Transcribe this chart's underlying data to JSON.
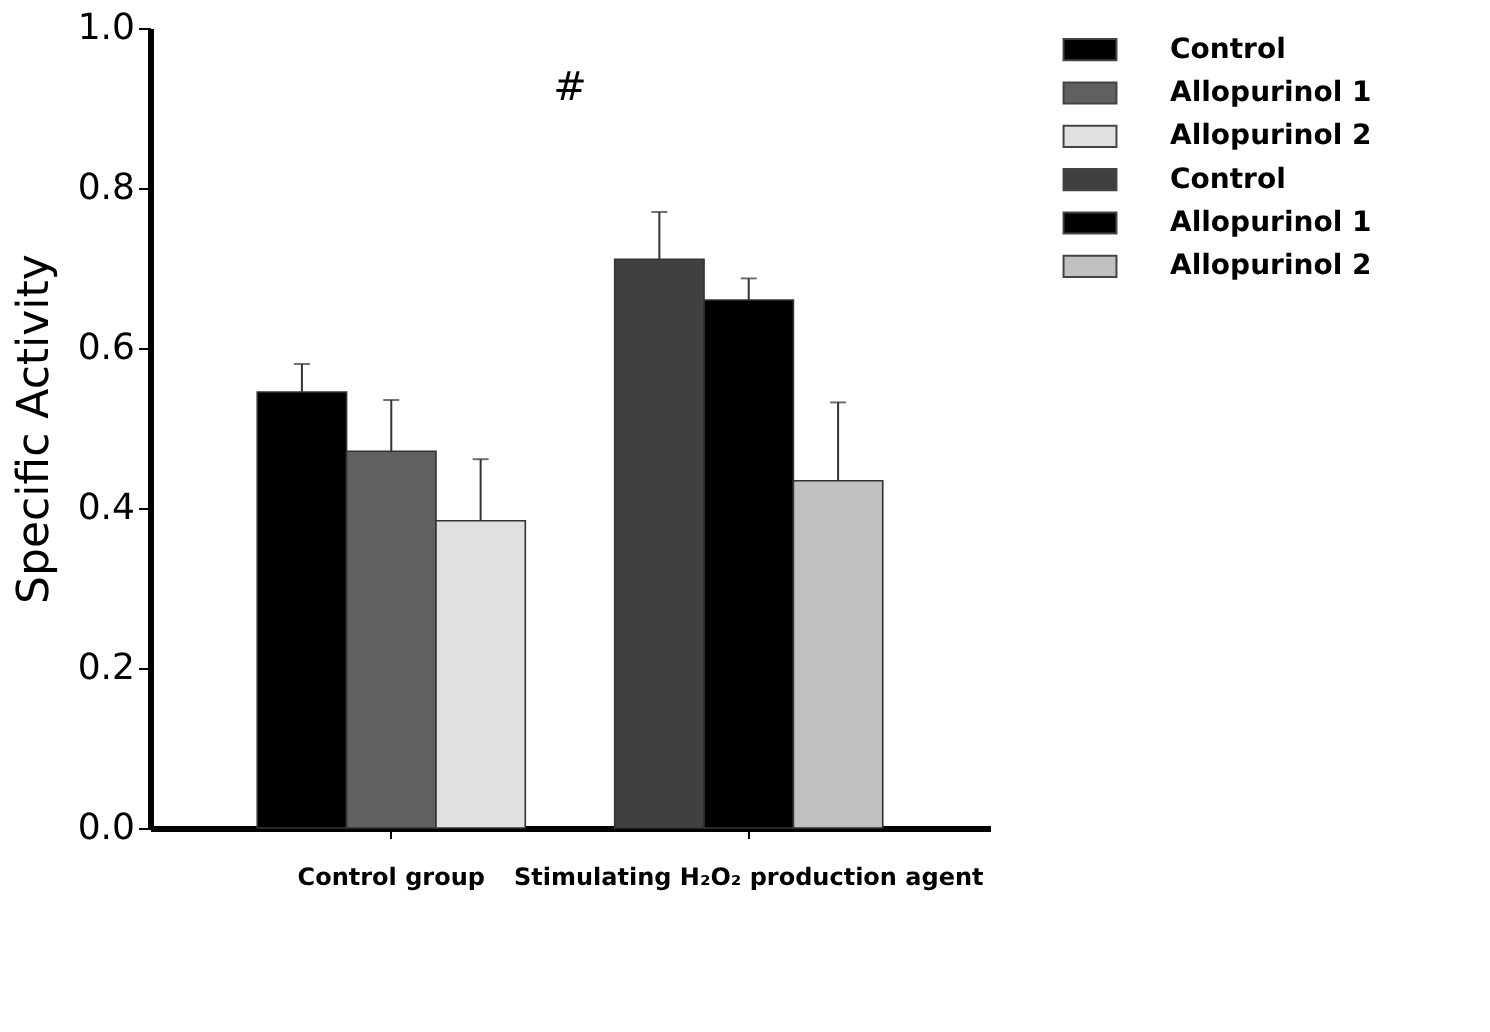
{
  "chart_data": {
    "type": "bar",
    "ylabel": "Specific Activity",
    "categories": [
      "Control group",
      "Stimulating H₂O₂ production agent"
    ],
    "series": [
      {
        "name": "Control",
        "color": "#000000",
        "values": [
          0.545,
          null
        ],
        "errors": [
          [
            0.545,
            0.58
          ],
          null
        ]
      },
      {
        "name": "Allopurinol 1",
        "color": "#606060",
        "values": [
          0.471,
          null
        ],
        "errors": [
          [
            0.471,
            0.535
          ],
          null
        ]
      },
      {
        "name": "Allopurinol 2",
        "color": "#e0e0e0",
        "values": [
          0.384,
          null
        ],
        "errors": [
          [
            0.384,
            0.461
          ],
          null
        ]
      },
      {
        "name": "Control",
        "color": "#404040",
        "values": [
          null,
          0.711
        ],
        "errors": [
          null,
          [
            0.711,
            0.77
          ]
        ]
      },
      {
        "name": "Allopurinol 1",
        "color": "#000000",
        "values": [
          null,
          0.66
        ],
        "errors": [
          null,
          [
            0.66,
            0.687
          ]
        ]
      },
      {
        "name": "Allopurinol 2",
        "color": "#c0c0c0",
        "values": [
          null,
          0.434
        ],
        "errors": [
          null,
          [
            0.434,
            0.532
          ]
        ]
      }
    ],
    "ylim": [
      0,
      1.0
    ],
    "yticks": [
      {
        "value": 0,
        "label": "0.0"
      },
      0.2,
      0.4,
      0.6,
      0.8,
      {
        "value": 1,
        "label": "1.0"
      }
    ],
    "grid": false,
    "legend": "right",
    "annotations": [
      "#"
    ]
  }
}
